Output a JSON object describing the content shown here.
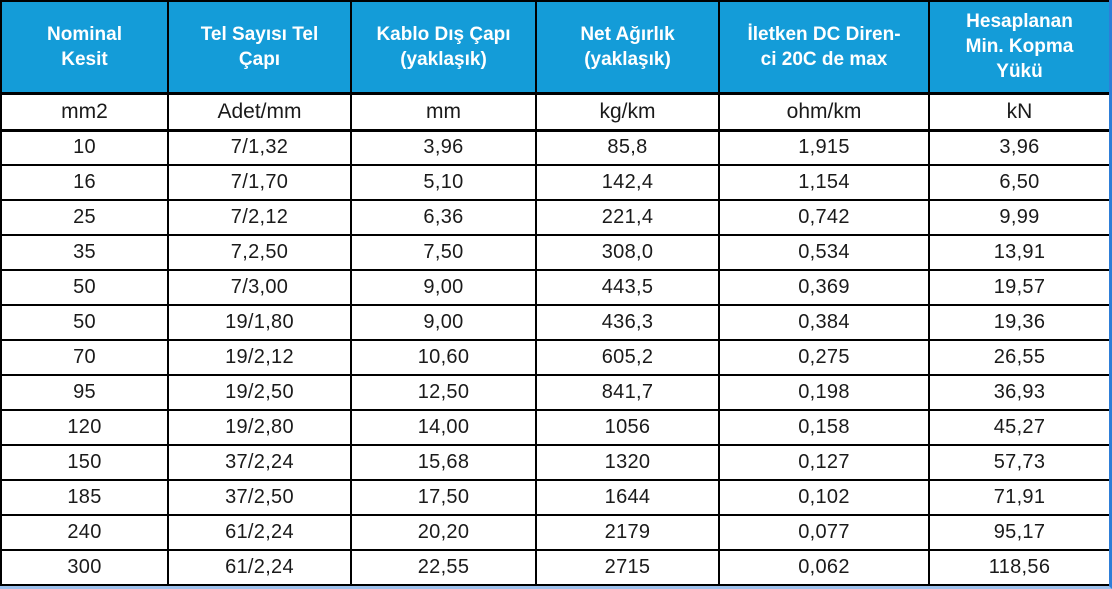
{
  "table": {
    "accent_color": "#149cd8",
    "grid_color": "#000000",
    "right_edge_color": "#2e7ed8",
    "bottom_edge_color": "#9cc0ec",
    "headers": [
      "Nominal\nKesit",
      "Tel Sayısı Tel\nÇapı",
      "Kablo Dış Çapı\n(yaklaşık)",
      "Net Ağırlık\n(yaklaşık)",
      "İletken DC Diren-\nci 20C de max",
      "Hesaplanan\nMin. Kopma\nYükü"
    ],
    "units": [
      "mm2",
      "Adet/mm",
      "mm",
      "kg/km",
      "ohm/km",
      "kN"
    ],
    "rows": [
      [
        "10",
        "7/1,32",
        "3,96",
        "85,8",
        "1,915",
        "3,96"
      ],
      [
        "16",
        "7/1,70",
        "5,10",
        "142,4",
        "1,154",
        "6,50"
      ],
      [
        "25",
        "7/2,12",
        "6,36",
        "221,4",
        "0,742",
        "9,99"
      ],
      [
        "35",
        "7,2,50",
        "7,50",
        "308,0",
        "0,534",
        "13,91"
      ],
      [
        "50",
        "7/3,00",
        "9,00",
        "443,5",
        "0,369",
        "19,57"
      ],
      [
        "50",
        "19/1,80",
        "9,00",
        "436,3",
        "0,384",
        "19,36"
      ],
      [
        "70",
        "19/2,12",
        "10,60",
        "605,2",
        "0,275",
        "26,55"
      ],
      [
        "95",
        "19/2,50",
        "12,50",
        "841,7",
        "0,198",
        "36,93"
      ],
      [
        "120",
        "19/2,80",
        "14,00",
        "1056",
        "0,158",
        "45,27"
      ],
      [
        "150",
        "37/2,24",
        "15,68",
        "1320",
        "0,127",
        "57,73"
      ],
      [
        "185",
        "37/2,50",
        "17,50",
        "1644",
        "0,102",
        "71,91"
      ],
      [
        "240",
        "61/2,24",
        "20,20",
        "2179",
        "0,077",
        "95,17"
      ],
      [
        "300",
        "61/2,24",
        "22,55",
        "2715",
        "0,062",
        "118,56"
      ]
    ]
  }
}
